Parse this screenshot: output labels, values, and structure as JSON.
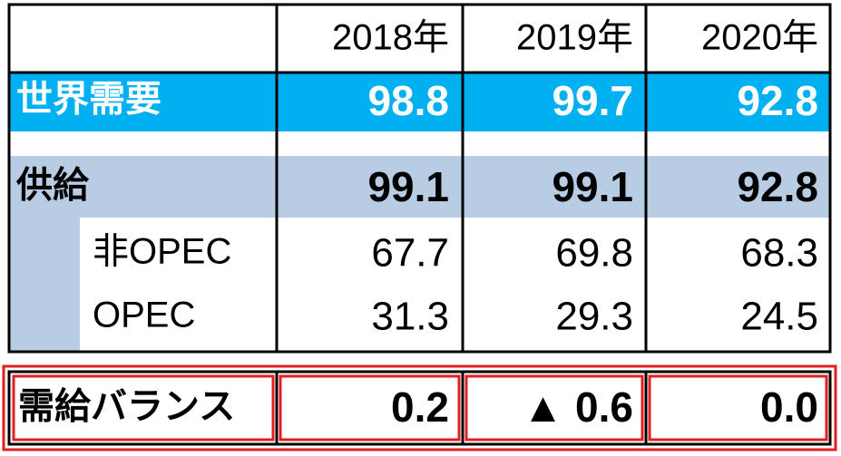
{
  "table": {
    "columns": [
      "2018年",
      "2019年",
      "2020年"
    ],
    "rows": [
      {
        "label": "世界需要",
        "values": [
          "98.8",
          "99.7",
          "92.8"
        ]
      },
      {
        "label": "供給",
        "values": [
          "99.1",
          "99.1",
          "92.8"
        ]
      },
      {
        "label": "非OPEC",
        "values": [
          "67.7",
          "69.8",
          "68.3"
        ]
      },
      {
        "label": "OPEC",
        "values": [
          "31.3",
          "29.3",
          "24.5"
        ]
      }
    ],
    "balance": {
      "label": "需給バランス",
      "values": [
        "0.2",
        "▲ 0.6",
        "0.0"
      ]
    }
  }
}
